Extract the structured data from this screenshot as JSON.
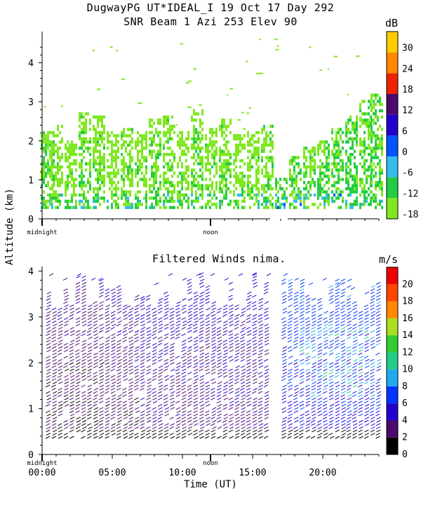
{
  "header": {
    "title_line1": "DugwayPG UT*IDEAL_I  19 Oct 17 Day 292",
    "title_line2": "SNR Beam 1 Azi 253 Elev 90"
  },
  "chart_data": [
    {
      "type": "heatmap",
      "title": "SNR Beam 1 Azi 253 Elev 90",
      "ylabel": "Altitude (km)",
      "xlim": [
        0,
        24
      ],
      "ylim": [
        0,
        4.8
      ],
      "yticks": [
        0,
        1,
        2,
        3,
        4
      ],
      "x_markers": [
        "midnight",
        "noon"
      ],
      "colorbar": {
        "unit": "dB",
        "ticks": [
          -18,
          -12,
          -6,
          0,
          6,
          12,
          18,
          24,
          30
        ],
        "colors": [
          "#7ee81f",
          "#22cc44",
          "#33bbee",
          "#0055ff",
          "#2200cc",
          "#4a0a6e",
          "#ee2200",
          "#ff8800",
          "#ffcc00"
        ]
      },
      "series": [
        {
          "name": "SNR",
          "values": [
            [
              0.3,
              0.25,
              2.2,
              -12
            ],
            [
              1.0,
              0.25,
              2.4,
              -13
            ],
            [
              2.0,
              0.25,
              2.0,
              -14
            ],
            [
              3.0,
              0.25,
              2.7,
              -12
            ],
            [
              4.0,
              0.25,
              2.6,
              -13
            ],
            [
              5.0,
              0.25,
              2.2,
              -14
            ],
            [
              6.0,
              0.25,
              2.3,
              -13
            ],
            [
              7.0,
              0.25,
              2.2,
              -14
            ],
            [
              8.0,
              0.25,
              2.5,
              -12
            ],
            [
              9.0,
              0.25,
              2.6,
              -13
            ],
            [
              10.0,
              0.25,
              2.2,
              -14
            ],
            [
              11.0,
              0.25,
              2.8,
              -13
            ],
            [
              12.0,
              0.25,
              2.3,
              -14
            ],
            [
              13.0,
              0.25,
              2.5,
              -13
            ],
            [
              14.0,
              0.25,
              2.1,
              -14
            ],
            [
              15.0,
              0.25,
              2.2,
              -14
            ],
            [
              16.0,
              0.25,
              2.4,
              -13
            ],
            [
              17.0,
              0.25,
              1.0,
              -10
            ],
            [
              18.0,
              0.25,
              1.6,
              -11
            ],
            [
              19.0,
              0.25,
              1.8,
              -12
            ],
            [
              20.0,
              0.25,
              2.0,
              -11
            ],
            [
              21.0,
              0.25,
              2.3,
              -10
            ],
            [
              22.0,
              0.25,
              2.6,
              -9
            ],
            [
              23.0,
              0.25,
              3.0,
              -10
            ],
            [
              23.8,
              0.25,
              3.2,
              -11
            ]
          ]
        }
      ]
    },
    {
      "type": "scatter",
      "title": "Filtered Winds nima.",
      "xlabel": "Time (UT)",
      "ylabel": "Altitude (km)",
      "xlim": [
        0,
        24
      ],
      "ylim": [
        0,
        4.1
      ],
      "xticks": [
        "00:00",
        "05:00",
        "10:00",
        "15:00",
        "20:00"
      ],
      "yticks": [
        0,
        1,
        2,
        3,
        4
      ],
      "x_markers": [
        "midnight",
        "noon"
      ],
      "colorbar": {
        "unit": "m/s",
        "ticks": [
          0,
          2,
          4,
          6,
          8,
          10,
          12,
          14,
          16,
          18,
          20
        ],
        "colors": [
          "#000000",
          "#4a0a6e",
          "#2200cc",
          "#0033ff",
          "#22aaee",
          "#22cc88",
          "#33cc33",
          "#aadd22",
          "#ff8800",
          "#ff4400",
          "#ee0000"
        ]
      },
      "series": [
        {
          "name": "wind",
          "values": [
            [
              0.5,
              3.9,
              3
            ],
            [
              1.5,
              3.8,
              3
            ],
            [
              2.5,
              3.9,
              4
            ],
            [
              3.5,
              3.8,
              4
            ],
            [
              4.0,
              3.8,
              6
            ],
            [
              6.0,
              3.2,
              4
            ],
            [
              7.0,
              3.4,
              4
            ],
            [
              8.0,
              3.7,
              4
            ],
            [
              9.0,
              3.9,
              4
            ],
            [
              10.0,
              3.8,
              4
            ],
            [
              11.0,
              3.9,
              5
            ],
            [
              12.0,
              3.9,
              4
            ],
            [
              13.0,
              3.8,
              4
            ],
            [
              14.0,
              3.9,
              4
            ],
            [
              15.0,
              3.9,
              4
            ],
            [
              16.0,
              3.9,
              4
            ],
            [
              17.2,
              3.9,
              6
            ],
            [
              18.0,
              3.8,
              6
            ],
            [
              19.0,
              3.7,
              6
            ],
            [
              20.0,
              3.8,
              6
            ],
            [
              21.0,
              3.7,
              6
            ],
            [
              22.0,
              3.6,
              7
            ],
            [
              23.0,
              3.5,
              7
            ]
          ]
        }
      ]
    }
  ]
}
